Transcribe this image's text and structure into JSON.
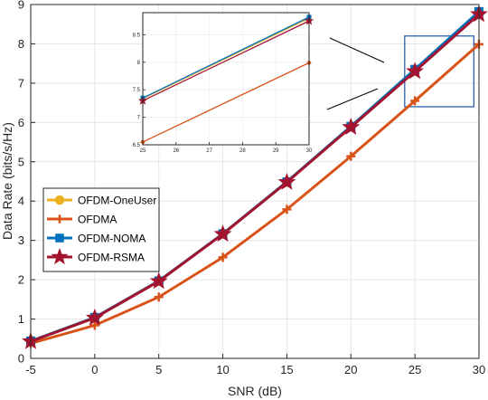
{
  "chart_data": {
    "type": "line",
    "xlabel": "SNR (dB)",
    "ylabel": "Data Rate (bits/s/Hz)",
    "x": [
      -5,
      0,
      5,
      10,
      15,
      20,
      25,
      30
    ],
    "xlim": [
      -5,
      30
    ],
    "ylim": [
      0,
      9
    ],
    "xticks": [
      "-5",
      "0",
      "5",
      "10",
      "15",
      "20",
      "25",
      "30"
    ],
    "yticks": [
      "0",
      "1",
      "2",
      "3",
      "4",
      "5",
      "6",
      "7",
      "8",
      "9"
    ],
    "legend_position": "center-left",
    "series": [
      {
        "name": "OFDM-OneUser",
        "color": "#EDB120",
        "marker": "circle",
        "values": [
          0.44,
          1.04,
          1.97,
          3.17,
          4.49,
          5.9,
          7.34,
          8.8
        ]
      },
      {
        "name": "OFDMA",
        "color": "#D95319",
        "marker": "plus",
        "values": [
          0.38,
          0.84,
          1.56,
          2.57,
          3.79,
          5.14,
          6.55,
          7.99
        ]
      },
      {
        "name": "OFDM-NOMA",
        "color": "#0072BD",
        "marker": "square",
        "values": [
          0.44,
          1.04,
          1.97,
          3.17,
          4.49,
          5.9,
          7.35,
          8.82
        ]
      },
      {
        "name": "OFDM-RSMA",
        "color": "#A2142F",
        "marker": "star",
        "values": [
          0.43,
          1.03,
          1.96,
          3.16,
          4.48,
          5.88,
          7.3,
          8.75
        ]
      }
    ],
    "inset": {
      "xlim": [
        25,
        30
      ],
      "ylim": [
        6.5,
        8.9
      ],
      "xticks": [
        "25",
        "26",
        "27",
        "28",
        "29",
        "30"
      ],
      "yticks": [
        "6.5",
        "7",
        "7.5",
        "8",
        "8.5"
      ],
      "zoom_box": {
        "xlim": [
          24.2,
          29.6
        ],
        "ylim": [
          6.4,
          8.2
        ]
      }
    }
  }
}
